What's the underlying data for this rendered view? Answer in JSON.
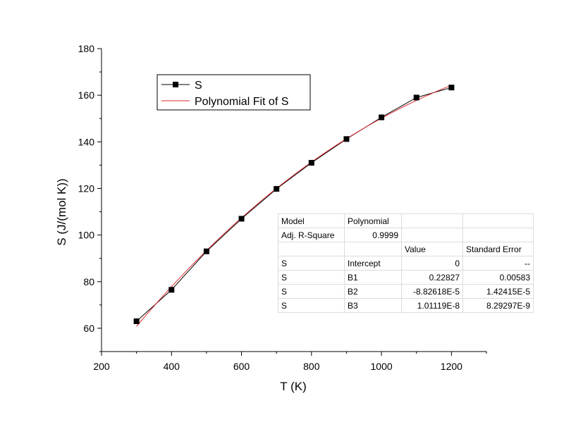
{
  "chart_data": {
    "type": "scatter",
    "xlabel": "T (K)",
    "ylabel": "S (J/(mol K))",
    "xlim": [
      200,
      1300
    ],
    "ylim": [
      50,
      180
    ],
    "x_ticks": [
      200,
      400,
      600,
      800,
      1000,
      1200
    ],
    "y_ticks": [
      60,
      80,
      100,
      120,
      140,
      160,
      180
    ],
    "grid": false,
    "legend_position": "top-left",
    "series": [
      {
        "name": "S",
        "style": "line+square-markers",
        "color": "#000000",
        "x": [
          300,
          400,
          500,
          600,
          700,
          800,
          900,
          1000,
          1100,
          1200
        ],
        "y": [
          63.0,
          76.5,
          93.0,
          107.0,
          119.8,
          131.0,
          141.2,
          150.5,
          159.0,
          163.3
        ]
      },
      {
        "name": "Polynomial Fit of S",
        "style": "line",
        "color": "#e0282e",
        "fit": {
          "intercept": 0,
          "b1": 0.22827,
          "b2": -8.82618e-05,
          "b3": 1.01119e-08
        },
        "x_range": [
          300,
          1200
        ]
      }
    ]
  },
  "stats_table": {
    "rows": [
      [
        "Model",
        "Polynomial",
        "",
        ""
      ],
      [
        "Adj. R-Square",
        "0.9999",
        "",
        ""
      ],
      [
        "",
        "",
        "Value",
        "Standard Error"
      ],
      [
        "S",
        "Intercept",
        "0",
        "--"
      ],
      [
        "S",
        "B1",
        "0.22827",
        "0.00583"
      ],
      [
        "S",
        "B2",
        "-8.82618E-5",
        "1.42415E-5"
      ],
      [
        "S",
        "B3",
        "1.01119E-8",
        "8.29297E-9"
      ]
    ]
  }
}
